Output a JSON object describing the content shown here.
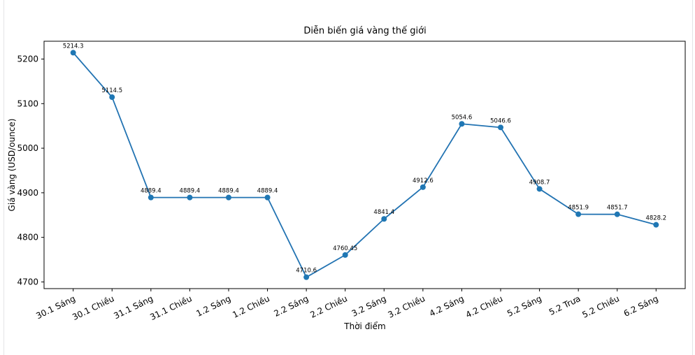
{
  "page": {
    "background": "#ffffff",
    "edge_line_color": "#e4e4e7"
  },
  "chart_data": {
    "type": "line",
    "title": "Diễn biến giá vàng thế giới",
    "xlabel": "Thời điểm",
    "ylabel": "Giá vàng (USD/ounce)",
    "categories": [
      "30.1 Sáng",
      "30.1 Chiều",
      "31.1 Sáng",
      "31.1 Chiều",
      "1.2 Sáng",
      "1.2 Chiều",
      "2.2 Sáng",
      "2.2 Chiều",
      "3.2 Sáng",
      "3.2 Chiều",
      "4.2 Sáng",
      "4.2 Chiều",
      "5.2 Sáng",
      "5.2 Trưa",
      "5.2 Chiều",
      "6.2 Sáng"
    ],
    "values": [
      5214.3,
      5114.5,
      4889.4,
      4889.4,
      4889.4,
      4889.4,
      4710.6,
      4760.45,
      4841.4,
      4912.6,
      5054.6,
      5046.6,
      4908.7,
      4851.9,
      4851.7,
      4828.2
    ],
    "point_labels": [
      "5214.3",
      "5114.5",
      "4889.4",
      "4889.4",
      "4889.4",
      "4889.4",
      "4710.6",
      "4760.45",
      "4841.4",
      "4912.6",
      "5054.6",
      "5046.6",
      "4908.7",
      "4851.9",
      "4851.7",
      "4828.2"
    ],
    "yticks": [
      4700,
      4800,
      4900,
      5000,
      5100,
      5200
    ],
    "ylim": [
      4685,
      5240
    ],
    "x_margin": 0.75,
    "grid": false,
    "legend": "none",
    "line_color": "#2273b2",
    "marker_color": "#1f77b4",
    "spine_color": "#000000",
    "text_color": "#000000"
  }
}
